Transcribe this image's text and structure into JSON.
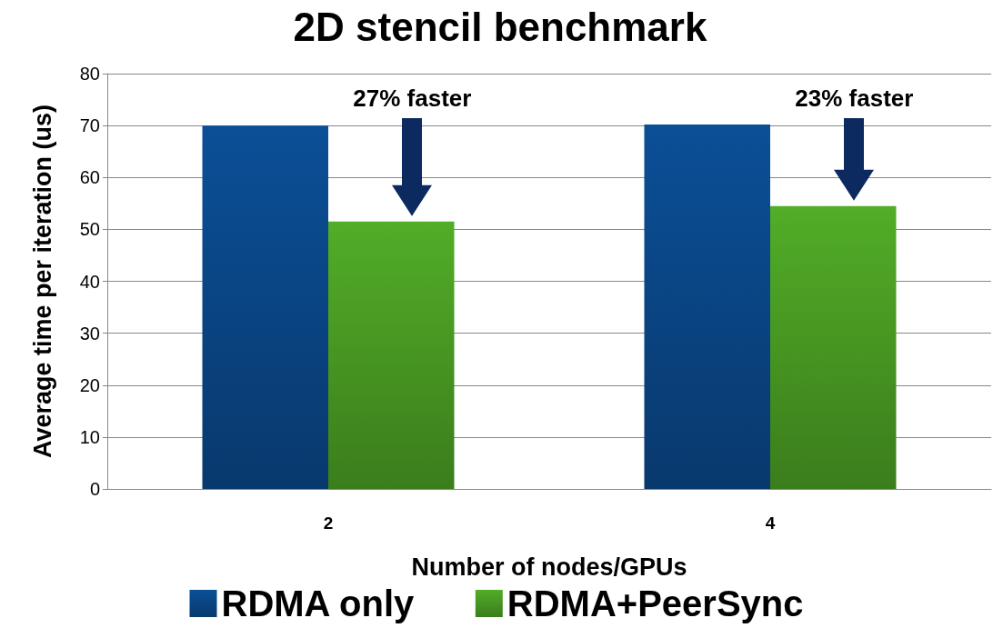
{
  "chart_data": {
    "type": "bar",
    "title": "2D stencil benchmark",
    "xlabel": "Number of nodes/GPUs",
    "ylabel": "Average time per iteration (us)",
    "categories": [
      "2",
      "4"
    ],
    "series": [
      {
        "name": "RDMA only",
        "color": "#0b4f97",
        "values": [
          70,
          70.2
        ]
      },
      {
        "name": "RDMA+PeerSync",
        "color": "#52ad27",
        "values": [
          51.5,
          54.5
        ]
      }
    ],
    "ylim": [
      0,
      80
    ],
    "yticks": [
      0,
      10,
      20,
      30,
      40,
      50,
      60,
      70,
      80
    ],
    "grid": "y",
    "legend": "bottom",
    "annotations": [
      "27% faster",
      "23% faster"
    ]
  }
}
